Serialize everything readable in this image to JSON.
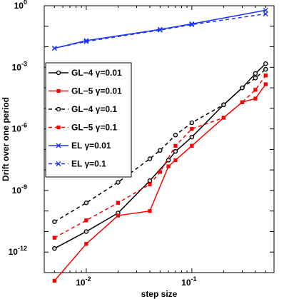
{
  "chart_data": {
    "type": "line",
    "title": "",
    "xlabel": "step size",
    "ylabel": "Drift over one period",
    "xscale": "log",
    "yscale": "log",
    "xlim": [
      0.004,
      0.6
    ],
    "ylim": [
      1e-13,
      1
    ],
    "grid": false,
    "legend_position": "left",
    "x_ticks": [
      {
        "value": 0.01,
        "base": "10",
        "exp": "-2"
      },
      {
        "value": 0.1,
        "base": "10",
        "exp": "-1"
      }
    ],
    "y_ticks": [
      {
        "value": 1,
        "base": "10",
        "exp": "0"
      },
      {
        "value": 0.001,
        "base": "10",
        "exp": "-3"
      },
      {
        "value": 1e-06,
        "base": "10",
        "exp": "-6"
      },
      {
        "value": 1e-09,
        "base": "10",
        "exp": "-9"
      },
      {
        "value": 1e-12,
        "base": "10",
        "exp": "-12"
      }
    ],
    "series": [
      {
        "name": "GL−4 γ=0.01",
        "color": "#000000",
        "dash": "solid",
        "marker": "circle",
        "x": [
          0.005,
          0.01,
          0.02,
          0.04,
          0.06,
          0.07,
          0.1,
          0.2,
          0.3,
          0.4,
          0.5
        ],
        "y": [
          1.5e-12,
          1e-11,
          8e-11,
          3e-09,
          3e-08,
          8e-08,
          4e-07,
          1.5e-05,
          0.0001,
          0.0005,
          0.0015
        ]
      },
      {
        "name": "GL−5 γ=0.01",
        "color": "#ff0000",
        "dash": "solid",
        "marker": "square",
        "x": [
          0.005,
          0.01,
          0.02,
          0.04,
          0.06,
          0.07,
          0.1,
          0.2,
          0.3,
          0.4,
          0.5
        ],
        "y": [
          4e-14,
          2.5e-12,
          6e-11,
          1e-10,
          1.5e-08,
          3e-08,
          1.5e-07,
          3.5e-06,
          2e-05,
          3e-05,
          0.00015
        ]
      },
      {
        "name": "GL−4 γ=0.1",
        "color": "#000000",
        "dash": "dashed",
        "marker": "circle",
        "x": [
          0.005,
          0.01,
          0.02,
          0.04,
          0.05,
          0.07,
          0.1,
          0.2,
          0.3,
          0.4,
          0.5
        ],
        "y": [
          3e-11,
          2.5e-10,
          2.5e-09,
          3.5e-08,
          9e-08,
          5e-07,
          2e-06,
          1.5e-05,
          0.0001,
          0.0003,
          0.0008
        ]
      },
      {
        "name": "GL−5 γ=0.1",
        "color": "#ff0000",
        "dash": "dashed",
        "marker": "square",
        "x": [
          0.005,
          0.01,
          0.02,
          0.04,
          0.05,
          0.07,
          0.1,
          0.2,
          0.3,
          0.4,
          0.5
        ],
        "y": [
          5e-12,
          3.5e-11,
          2.5e-10,
          2e-09,
          8e-09,
          1.5e-07,
          1e-06,
          3.5e-06,
          2e-05,
          8e-05,
          0.0004
        ]
      },
      {
        "name": "EL γ=0.01",
        "color": "#1a33ff",
        "dash": "solid",
        "marker": "x",
        "x": [
          0.005,
          0.01,
          0.05,
          0.1,
          0.5
        ],
        "y": [
          0.0085,
          0.02,
          0.07,
          0.13,
          0.6
        ]
      },
      {
        "name": "EL γ=0.1",
        "color": "#1a33ff",
        "dash": "dashed",
        "marker": "x",
        "x": [
          0.005,
          0.01,
          0.05,
          0.1,
          0.5
        ],
        "y": [
          0.0085,
          0.018,
          0.065,
          0.12,
          0.4
        ]
      }
    ]
  }
}
